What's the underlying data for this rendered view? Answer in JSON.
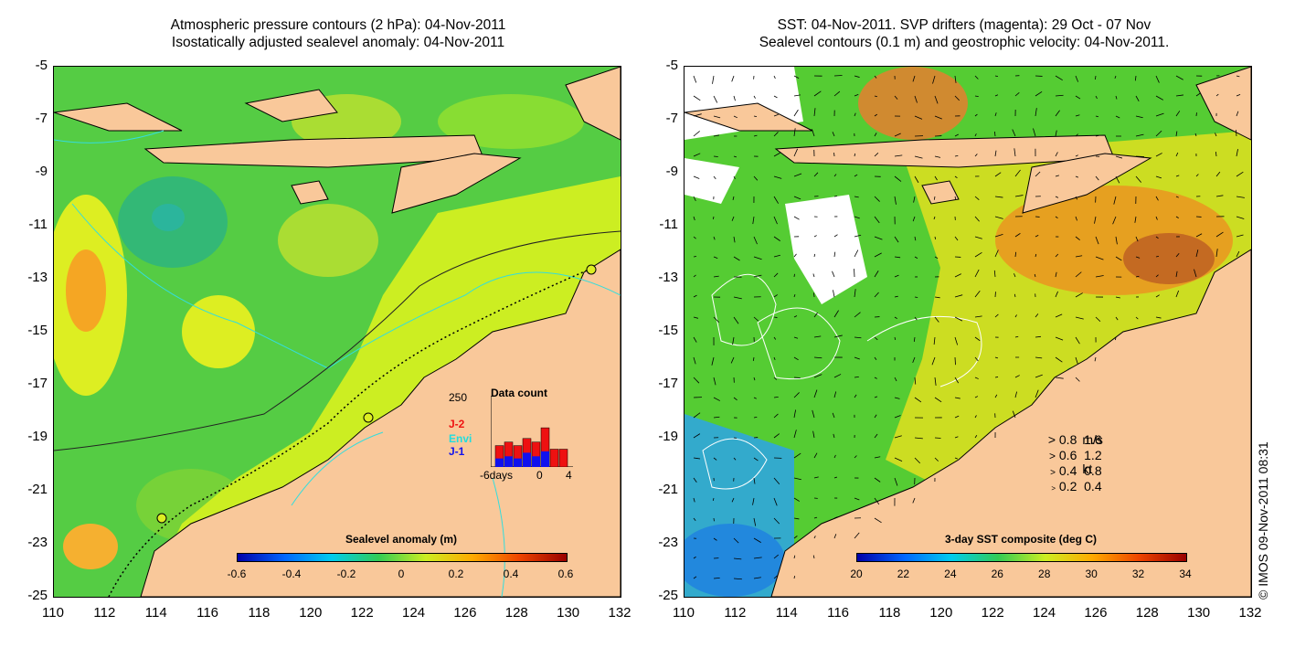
{
  "left_panel": {
    "title_line1": "Atmospheric pressure contours (2 hPa): 04-Nov-2011",
    "title_line2": "Isostatically adjusted sealevel anomaly: 04-Nov-2011",
    "y_ticks": [
      "-5",
      "-7",
      "-9",
      "-11",
      "-13",
      "-15",
      "-17",
      "-19",
      "-21",
      "-23",
      "-25"
    ],
    "x_ticks": [
      "110",
      "112",
      "114",
      "116",
      "118",
      "120",
      "122",
      "124",
      "126",
      "128",
      "130",
      "132"
    ],
    "colorbar_label": "Sealevel anomaly (m)",
    "colorbar_ticks": [
      "-0.6",
      "-0.4",
      "-0.2",
      "0",
      "0.2",
      "0.4",
      "0.6"
    ],
    "inset": {
      "title": "Data count",
      "y_max": "250",
      "x_left": "-6days",
      "x_mid": "0",
      "x_right": "4",
      "legend": [
        "J-2",
        "Envi",
        "J-1"
      ],
      "legend_colors": [
        "#ee1111",
        "#22dddd",
        "#1111ee"
      ]
    }
  },
  "right_panel": {
    "title_line1": "SST: 04-Nov-2011. SVP drifters (magenta): 29 Oct - 07 Nov",
    "title_line2": "Sealevel contours (0.1 m) and geostrophic velocity: 04-Nov-2011.",
    "y_ticks": [
      "-5",
      "-7",
      "-9",
      "-11",
      "-13",
      "-15",
      "-17",
      "-19",
      "-21",
      "-23",
      "-25"
    ],
    "x_ticks": [
      "110",
      "112",
      "114",
      "116",
      "118",
      "120",
      "122",
      "124",
      "126",
      "128",
      "130",
      "132"
    ],
    "colorbar_label": "3-day SST composite (deg C)",
    "colorbar_ticks": [
      "20",
      "22",
      "24",
      "26",
      "28",
      "30",
      "32",
      "34"
    ],
    "velocity_legend": {
      "header_ms": "m/s",
      "header_kt": "kt",
      "rows": [
        {
          "ms": "0.8",
          "kt": "1.6"
        },
        {
          "ms": "0.6",
          "kt": "1.2"
        },
        {
          "ms": "0.4",
          "kt": "0.8"
        },
        {
          "ms": "0.2",
          "kt": "0.4"
        }
      ]
    }
  },
  "copyright": "© IMOS 09-Nov-2011 08:31",
  "colors": {
    "land": "#f9c89a",
    "ocean_green": "#44c94a",
    "shelf_yellow": "#ccee22"
  }
}
